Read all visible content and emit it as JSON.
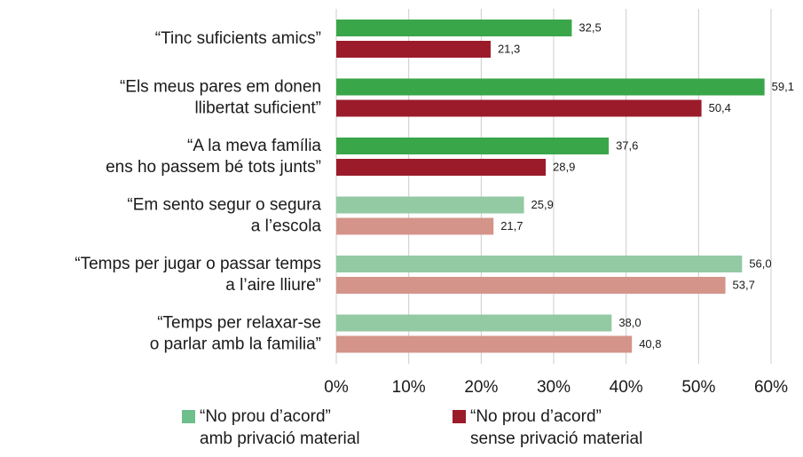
{
  "chart_data": {
    "type": "barh",
    "categories": [
      [
        "“Tinc suficients amics”"
      ],
      [
        "“Els meus pares em donen",
        "llibertat suficient”"
      ],
      [
        "“A la meva família",
        "ens ho passem bé tots junts”"
      ],
      [
        "“Em sento segur o segura",
        "a l’escola"
      ],
      [
        "“Temps per jugar o passar temps",
        "a l’aire lliure”"
      ],
      [
        "“Temps per relaxar-se",
        "o parlar amb la familia”"
      ]
    ],
    "series": [
      {
        "name": [
          "“No prou d’acord”",
          "amb privació material"
        ],
        "color": "#6dbf8c",
        "colors": [
          "#3aa64a",
          "#3aa64a",
          "#3aa64a",
          "#93c9a3",
          "#93c9a3",
          "#93c9a3"
        ],
        "values": [
          32.5,
          59.1,
          37.6,
          25.9,
          56.0,
          38.0
        ],
        "value_labels": [
          "32,5",
          "59,1",
          "37,6",
          "25,9",
          "56,0",
          "38,0"
        ]
      },
      {
        "name": [
          "“No prou d’acord”",
          "sense privació material"
        ],
        "color": "#9b1b2a",
        "colors": [
          "#9b1b2a",
          "#9b1b2a",
          "#9b1b2a",
          "#d4948a",
          "#d4948a",
          "#d4948a"
        ],
        "values": [
          21.3,
          50.4,
          28.9,
          21.7,
          53.7,
          40.8
        ],
        "value_labels": [
          "21,3",
          "50,4",
          "28,9",
          "21,7",
          "53,7",
          "40,8"
        ]
      }
    ],
    "xlim": [
      0,
      60
    ],
    "xticks": [
      {
        "value": 0,
        "label": "0%"
      },
      {
        "value": 10,
        "label": "10%"
      },
      {
        "value": 20,
        "label": "20%"
      },
      {
        "value": 30,
        "label": "30%"
      },
      {
        "value": 40,
        "label": "40%"
      },
      {
        "value": 50,
        "label": "50%"
      },
      {
        "value": 60,
        "label": "60%"
      }
    ],
    "grid": true,
    "legend": "bottom"
  }
}
